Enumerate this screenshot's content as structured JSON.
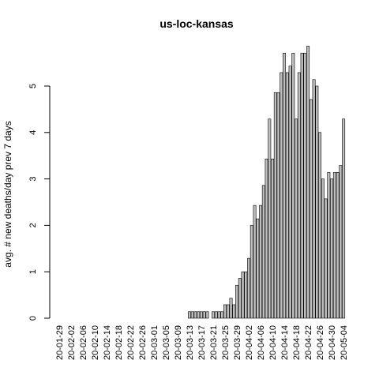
{
  "chart_data": {
    "type": "bar",
    "title": "us-loc-kansas",
    "xlabel": "",
    "ylabel": "avg. # new deaths/day prev  7  days",
    "ylim": [
      0,
      6
    ],
    "yticks": [
      0,
      1,
      2,
      3,
      4,
      5
    ],
    "bar_fill": "#bebebe",
    "bar_stroke": "#000000",
    "x_tick_labels": [
      "20-01-29",
      "20-02-02",
      "20-02-06",
      "20-02-10",
      "20-02-14",
      "20-02-18",
      "20-02-22",
      "20-02-26",
      "20-03-01",
      "20-03-05",
      "20-03-09",
      "20-03-13",
      "20-03-17",
      "20-03-21",
      "20-03-25",
      "20-03-29",
      "20-04-02",
      "20-04-06",
      "20-04-10",
      "20-04-14",
      "20-04-18",
      "20-04-22",
      "20-04-26",
      "20-04-30",
      "20-05-04"
    ],
    "start_label": "20-01-29",
    "values": [
      0,
      0,
      0,
      0,
      0,
      0,
      0,
      0,
      0,
      0,
      0,
      0,
      0,
      0,
      0,
      0,
      0,
      0,
      0,
      0,
      0,
      0,
      0,
      0,
      0,
      0,
      0,
      0,
      0,
      0,
      0,
      0,
      0,
      0,
      0,
      0,
      0,
      0,
      0,
      0,
      0,
      0,
      0,
      0,
      0.14,
      0.14,
      0.14,
      0.14,
      0.14,
      0.14,
      0.14,
      0,
      0.14,
      0.14,
      0.14,
      0.14,
      0.29,
      0.29,
      0.43,
      0.29,
      0.71,
      0.86,
      1.0,
      1.0,
      1.29,
      2.0,
      2.43,
      2.14,
      2.43,
      2.86,
      3.43,
      4.29,
      3.43,
      4.86,
      4.86,
      5.29,
      5.71,
      5.29,
      5.43,
      5.71,
      4.29,
      5.29,
      5.71,
      5.71,
      5.86,
      4.71,
      5.14,
      5.0,
      4.0,
      3.0,
      2.57,
      3.14,
      3.0,
      3.14,
      3.14,
      3.29,
      4.29
    ]
  }
}
